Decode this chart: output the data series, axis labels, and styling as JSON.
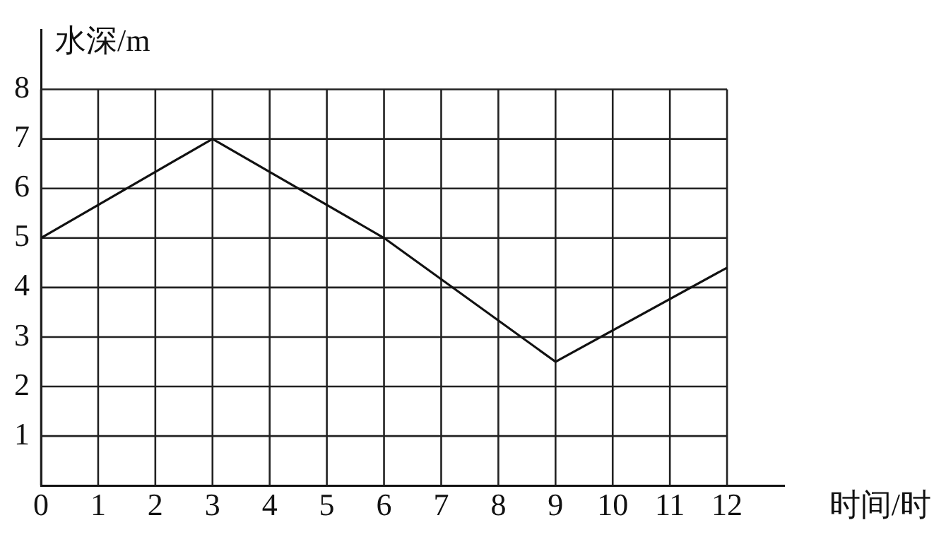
{
  "chart_data": {
    "type": "line",
    "xlabel": "时间/时",
    "ylabel": "水深/m",
    "x": [
      0,
      3,
      6,
      9,
      12
    ],
    "series": [
      {
        "color": "#111111",
        "values": [
          5,
          7,
          5,
          2.5,
          4.4
        ]
      }
    ],
    "xlim": [
      0,
      13
    ],
    "ylim": [
      0,
      9.2
    ],
    "xticks": [
      0,
      1,
      2,
      3,
      4,
      5,
      6,
      7,
      8,
      9,
      10,
      11,
      12
    ],
    "yticks": [
      1,
      2,
      3,
      4,
      5,
      6,
      7,
      8
    ],
    "grid": true,
    "legend": false,
    "marker": "none",
    "line_style": "solid"
  }
}
